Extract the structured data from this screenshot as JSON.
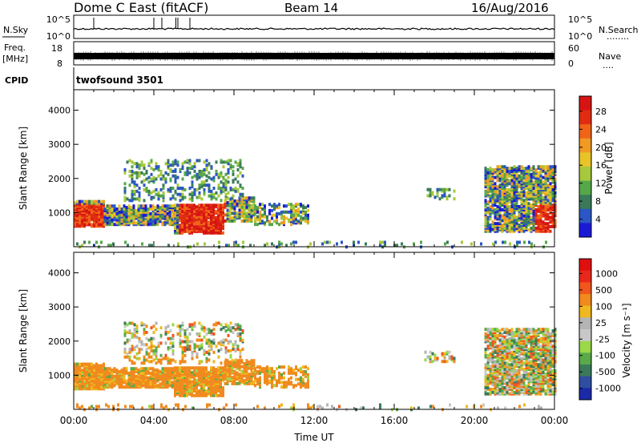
{
  "header": {
    "title": "Dome C East (fitACF)",
    "beam": "Beam 14",
    "date": "16/Aug/2016"
  },
  "nsky": {
    "label": "N.Sky",
    "ticks": [
      "10^5",
      "10^0"
    ],
    "right_ticks": [
      "10^5",
      "10^0"
    ],
    "right_label": "N.Search",
    "right_marker": "........"
  },
  "freq": {
    "label_line1": "Freq.",
    "label_line2": "[MHz]",
    "ticks": [
      "18",
      "8"
    ],
    "right_ticks": [
      "60",
      "0"
    ],
    "right_label": "Nave",
    "right_marker": "...."
  },
  "cpid": {
    "label": "CPID",
    "program": "twofsound 3501"
  },
  "chart_data": [
    {
      "type": "heatmap",
      "panel": "power",
      "ylabel": "Slant Range [km]",
      "ylim": [
        0,
        4600
      ],
      "yticks": [
        "1000",
        "2000",
        "3000",
        "4000"
      ],
      "xlim": [
        0,
        24
      ],
      "colorbar": {
        "label": "Power [dB]",
        "ticks": [
          "4",
          "8",
          "12",
          "16",
          "20",
          "24",
          "28"
        ],
        "colors": [
          "#1a1ad6",
          "#2a57c4",
          "#3a7a5a",
          "#56a74a",
          "#a6c83c",
          "#e8c428",
          "#f09a24",
          "#f06418",
          "#e02d12",
          "#d61414"
        ]
      }
    },
    {
      "type": "heatmap",
      "panel": "velocity",
      "ylabel": "Slant Range [km]",
      "ylim": [
        0,
        4600
      ],
      "yticks": [
        "1000",
        "2000",
        "3000",
        "4000"
      ],
      "xlim": [
        0,
        24
      ],
      "xticks": [
        "00:00",
        "04:00",
        "08:00",
        "12:00",
        "16:00",
        "20:00",
        "00:00"
      ],
      "xlabel": "Time UT",
      "colorbar": {
        "label": "Velocity [m s⁻¹]",
        "ticks": [
          "1000",
          "500",
          "100",
          "25",
          "-25",
          "-100",
          "-500",
          "-1000"
        ],
        "colors": [
          "#1a2aa8",
          "#2e4ea0",
          "#3a7a5a",
          "#5aaa4a",
          "#9ad84a",
          "#c8c8c8",
          "#b4b4b4",
          "#f0b81e",
          "#f08a1e",
          "#f0561e",
          "#e8281a",
          "#e00e0e"
        ]
      }
    }
  ]
}
